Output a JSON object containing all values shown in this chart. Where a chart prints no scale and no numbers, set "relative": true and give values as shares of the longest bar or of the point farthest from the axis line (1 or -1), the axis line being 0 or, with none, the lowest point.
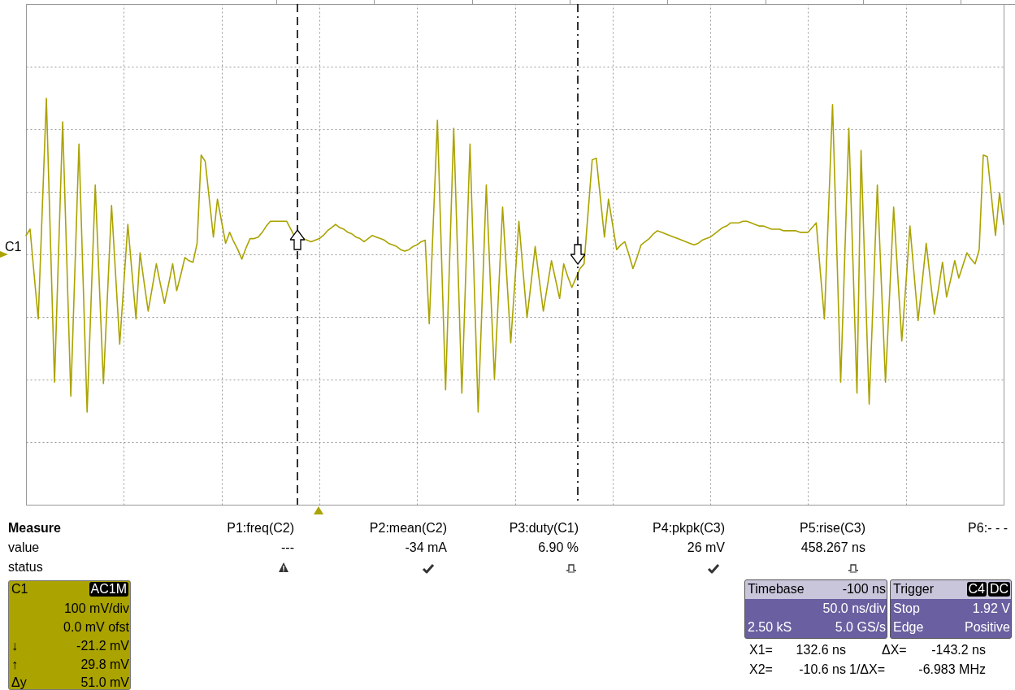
{
  "chart_data": {
    "type": "line",
    "relative": true,
    "grid": true,
    "categories": [
      null,
      null,
      null,
      null,
      null,
      null,
      null,
      null,
      null,
      null,
      null,
      null,
      null,
      null,
      null,
      null,
      null,
      null,
      null,
      null,
      null,
      null,
      null,
      null,
      null,
      null,
      null,
      null,
      null,
      null,
      null,
      null,
      null,
      null,
      null,
      null,
      null,
      null,
      null,
      null,
      null,
      null,
      null,
      null,
      null,
      null,
      null,
      null,
      null,
      null,
      null,
      null,
      null,
      null,
      null,
      null,
      null,
      null,
      null,
      null,
      null,
      null,
      null,
      null,
      null,
      null,
      null,
      null,
      null,
      null,
      null,
      null,
      null,
      null,
      null,
      null,
      null,
      null,
      null,
      null,
      null,
      null,
      null,
      null,
      null,
      null,
      null,
      null,
      null,
      null,
      null,
      null,
      null,
      null,
      null,
      null,
      null,
      null,
      null,
      null,
      null,
      null,
      null,
      null,
      null,
      null,
      null,
      null,
      null,
      null,
      null,
      null,
      null,
      null,
      null,
      null,
      null,
      null,
      null,
      null,
      null,
      null,
      null,
      null,
      null,
      null,
      null,
      null,
      null,
      null,
      null,
      null,
      null,
      null,
      null,
      null,
      null,
      null,
      null,
      null,
      null,
      null,
      null,
      null,
      null,
      null,
      null,
      null,
      null,
      null,
      null,
      null,
      null,
      null,
      null,
      null,
      null,
      null,
      null,
      null,
      null,
      null,
      null,
      null,
      null,
      null,
      null,
      null,
      null,
      null,
      null,
      null,
      null,
      null,
      null,
      null,
      null,
      null,
      null,
      null,
      null,
      null,
      null,
      null,
      null,
      null,
      null,
      null,
      null,
      null,
      null,
      null,
      null,
      null,
      null,
      null,
      null,
      null,
      null,
      null,
      null,
      null,
      null,
      null,
      null,
      null,
      null,
      null,
      null,
      null,
      null,
      null,
      null,
      null,
      null,
      null,
      null,
      null,
      null,
      null,
      null,
      null,
      null,
      null,
      null,
      null,
      null,
      null,
      null,
      null,
      null,
      null,
      null,
      null,
      null,
      null,
      null,
      null,
      null,
      null,
      null
    ],
    "series": [
      {
        "color": "#aaa300",
        "values": [
          0.12,
          0.16,
          -0.13,
          -0.41,
          0.29,
          0.99,
          0.09,
          -0.81,
          0.02,
          0.84,
          -0.03,
          -0.9,
          -0.1,
          0.7,
          -0.15,
          -1.0,
          -0.28,
          0.44,
          -0.19,
          -0.82,
          -0.26,
          0.31,
          -0.13,
          -0.57,
          -0.19,
          0.19,
          -0.11,
          -0.41,
          0.01,
          -0.18,
          -0.36,
          -0.21,
          -0.06,
          -0.19,
          -0.31,
          -0.19,
          -0.06,
          -0.23,
          -0.13,
          -0.02,
          -0.04,
          -0.05,
          0.07,
          0.63,
          0.59,
          0.35,
          0.11,
          0.35,
          0.21,
          0.07,
          0.14,
          0.08,
          0.03,
          -0.03,
          0.04,
          0.1,
          0.1,
          0.11,
          0.14,
          0.18,
          0.21,
          0.21,
          0.21,
          0.21,
          0.21,
          0.16,
          0.11,
          0.1,
          0.1,
          0.09,
          0.08,
          0.09,
          0.1,
          0.12,
          0.15,
          0.17,
          0.19,
          0.17,
          0.16,
          0.14,
          0.13,
          0.11,
          0.1,
          0.08,
          0.1,
          0.12,
          0.11,
          0.1,
          0.09,
          0.07,
          0.06,
          0.05,
          0.03,
          0.02,
          0.03,
          0.05,
          0.06,
          0.08,
          0.09,
          -0.44,
          0.21,
          0.85,
          -0.01,
          -0.86,
          -0.03,
          0.8,
          -0.04,
          -0.88,
          -0.09,
          0.7,
          -0.15,
          -1.0,
          -0.28,
          0.44,
          -0.18,
          -0.79,
          -0.25,
          0.3,
          -0.13,
          -0.56,
          -0.18,
          0.21,
          -0.1,
          -0.4,
          -0.18,
          0.05,
          -0.16,
          -0.36,
          -0.2,
          -0.04,
          -0.16,
          -0.28,
          -0.06,
          -0.14,
          -0.21,
          -0.15,
          -0.09,
          -0.06,
          0.27,
          0.6,
          0.61,
          0.36,
          0.11,
          0.35,
          0.19,
          0.03,
          0.06,
          0.08,
          0.0,
          -0.09,
          -0.02,
          0.06,
          0.08,
          0.1,
          0.13,
          0.15,
          0.14,
          0.13,
          0.12,
          0.11,
          0.1,
          0.09,
          0.08,
          0.07,
          0.06,
          0.07,
          0.09,
          0.1,
          0.11,
          0.13,
          0.15,
          0.17,
          0.18,
          0.2,
          0.2,
          0.2,
          0.21,
          0.21,
          0.2,
          0.19,
          0.18,
          0.18,
          0.17,
          0.16,
          0.16,
          0.16,
          0.15,
          0.15,
          0.15,
          0.15,
          0.14,
          0.14,
          0.14,
          0.17,
          0.2,
          -0.11,
          -0.41,
          0.27,
          0.95,
          0.07,
          -0.81,
          -0.01,
          0.8,
          -0.04,
          -0.88,
          0.66,
          -0.15,
          -0.95,
          -0.26,
          0.44,
          -0.19,
          -0.81,
          -0.26,
          0.3,
          -0.13,
          -0.55,
          -0.19,
          0.18,
          -0.12,
          -0.42,
          -0.18,
          0.07,
          -0.16,
          -0.38,
          -0.22,
          -0.05,
          -0.27,
          -0.16,
          -0.04,
          -0.15,
          -0.07,
          0.01,
          -0.03,
          -0.06,
          0.03,
          0.63,
          0.62,
          0.37,
          0.12,
          0.39,
          0.19
        ]
      }
    ],
    "annotations": [
      "C1",
      "Measure",
      "P1:freq(C2)",
      "P2:mean(C2)",
      "P3:duty(C1)",
      "P4:pkpk(C3)",
      "P5:rise(C3)",
      "P6:- - -",
      "value",
      "---",
      "-34 mA",
      "6.90 %",
      "26 mV",
      "458.267 ns",
      "status",
      "C1",
      "AC1M",
      "100 mV/div",
      "0.0 mV ofst",
      "↓",
      "-21.2 mV",
      "↑",
      "29.8 mV",
      "Δy",
      "51.0 mV",
      "Timebase",
      "-100 ns",
      "50.0 ns/div",
      "2.50 kS",
      "5.0 GS/s",
      "Trigger",
      "C4",
      "DC",
      "Stop",
      "1.92 V",
      "Edge",
      "Positive",
      "X1=",
      "132.6 ns",
      "ΔX=",
      "-143.2 ns",
      "X2=",
      "-10.6 ns",
      "1/ΔX=",
      "-6.983 MHz"
    ]
  }
}
